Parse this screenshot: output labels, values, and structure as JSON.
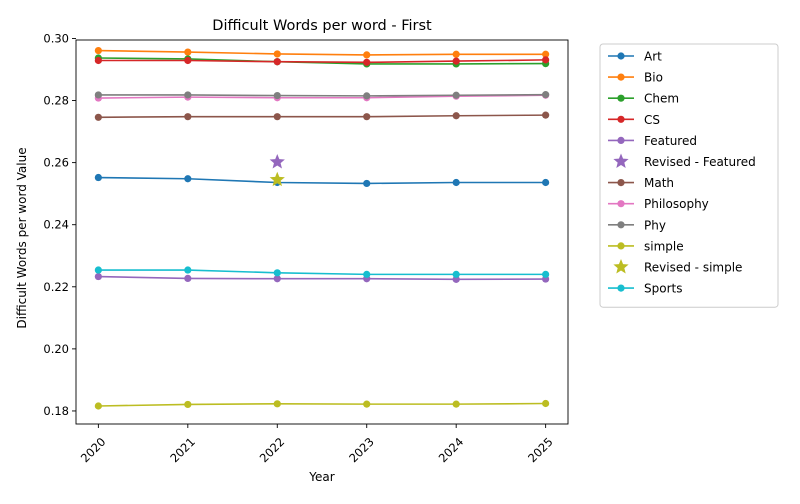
{
  "chart_data": {
    "type": "line",
    "title": "Difficult Words per word - First",
    "xlabel": "Year",
    "ylabel": "Difficult Words per word Value",
    "x": [
      2020,
      2021,
      2022,
      2023,
      2024,
      2025
    ],
    "x_tick_labels": [
      "2020",
      "2021",
      "2022",
      "2023",
      "2024",
      "2025"
    ],
    "xlim": [
      2019.75,
      2025.25
    ],
    "ylim": [
      0.1758,
      0.2995
    ],
    "y_ticks": [
      0.18,
      0.2,
      0.22,
      0.24,
      0.26,
      0.28,
      0.3
    ],
    "y_tick_labels": [
      "0.18",
      "0.20",
      "0.22",
      "0.24",
      "0.26",
      "0.28",
      "0.30"
    ],
    "grid": false,
    "legend_position": "outside right, top",
    "series": [
      {
        "name": "Art",
        "color": "#1f77b4",
        "values": [
          0.2552,
          0.2548,
          0.2536,
          0.2533,
          0.2536,
          0.2536
        ]
      },
      {
        "name": "Bio",
        "color": "#ff7f0e",
        "values": [
          0.2961,
          0.2956,
          0.295,
          0.2947,
          0.2949,
          0.2949
        ]
      },
      {
        "name": "Chem",
        "color": "#2ca02c",
        "values": [
          0.2937,
          0.2934,
          0.2925,
          0.2918,
          0.2918,
          0.2919
        ]
      },
      {
        "name": "CS",
        "color": "#d62728",
        "values": [
          0.2929,
          0.2929,
          0.2925,
          0.2923,
          0.2927,
          0.2931
        ]
      },
      {
        "name": "Featured",
        "color": "#9467bd",
        "values": [
          0.2233,
          0.2227,
          0.2226,
          0.2226,
          0.2224,
          0.2225
        ]
      },
      {
        "name": "Revised - Featured",
        "color": "#9467bd",
        "marker": "star",
        "x": [
          2022
        ],
        "values": [
          0.2602
        ]
      },
      {
        "name": "Math",
        "color": "#8c564b",
        "values": [
          0.2746,
          0.2748,
          0.2748,
          0.2748,
          0.2751,
          0.2753
        ]
      },
      {
        "name": "Philosophy",
        "color": "#e377c2",
        "values": [
          0.2808,
          0.2811,
          0.2809,
          0.2809,
          0.2814,
          0.2817
        ]
      },
      {
        "name": "Phy",
        "color": "#7f7f7f",
        "values": [
          0.2818,
          0.2818,
          0.2816,
          0.2815,
          0.2817,
          0.2819
        ]
      },
      {
        "name": "simple",
        "color": "#bcbd22",
        "values": [
          0.1816,
          0.1821,
          0.1823,
          0.1822,
          0.1822,
          0.1824
        ]
      },
      {
        "name": "Revised - simple",
        "color": "#bcbd22",
        "marker": "star",
        "x": [
          2022
        ],
        "values": [
          0.2545
        ]
      },
      {
        "name": "Sports",
        "color": "#17becf",
        "values": [
          0.2254,
          0.2254,
          0.2245,
          0.224,
          0.224,
          0.224
        ]
      }
    ]
  }
}
